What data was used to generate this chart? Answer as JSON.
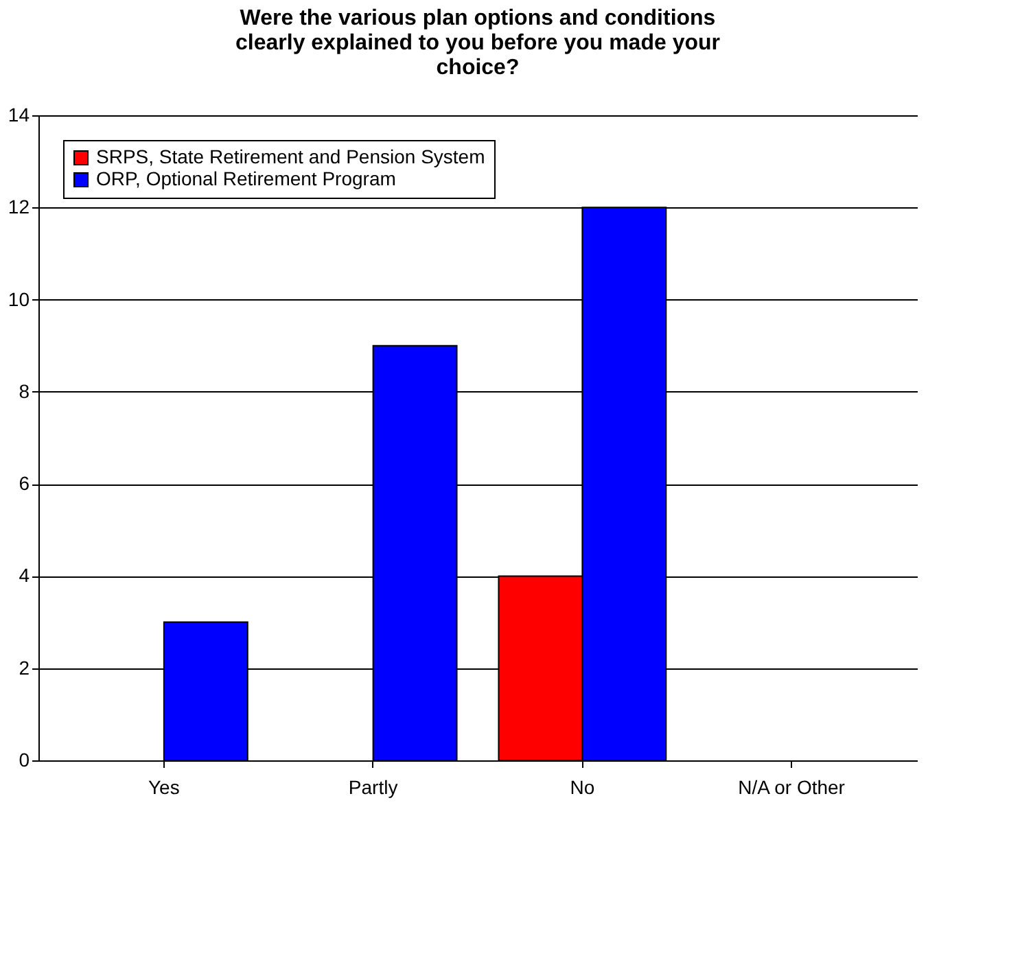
{
  "chart_data": {
    "type": "bar",
    "title": "Were the various plan options and conditions clearly explained to you before you made your choice?",
    "categories": [
      "Yes",
      "Partly",
      "No",
      "N/A or Other"
    ],
    "series": [
      {
        "name": "SRPS, State Retirement and Pension System",
        "color": "#ff0000",
        "values": [
          0,
          0,
          4,
          0
        ]
      },
      {
        "name": "ORP, Optional Retirement Program",
        "color": "#0000ff",
        "values": [
          3,
          9,
          12,
          0
        ]
      }
    ],
    "ylim": [
      0,
      14
    ],
    "yticks": [
      0,
      2,
      4,
      6,
      8,
      10,
      12,
      14
    ],
    "grid": "y",
    "legend": "top left"
  }
}
